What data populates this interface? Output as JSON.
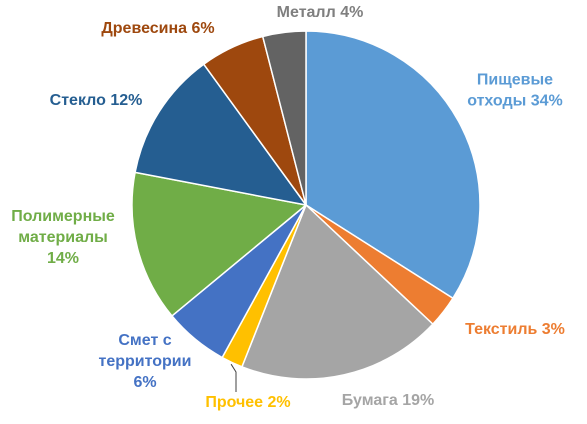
{
  "chart_data": {
    "type": "pie",
    "title": "",
    "series": [
      {
        "name": "Пищевые отходы",
        "value": 34,
        "color": "#5B9BD5",
        "label_lines": [
          "Пищевые",
          "отходы 34%"
        ]
      },
      {
        "name": "Текстиль",
        "value": 3,
        "color": "#ED7D31",
        "label_lines": [
          "Текстиль 3%"
        ]
      },
      {
        "name": "Бумага",
        "value": 19,
        "color": "#A5A5A5",
        "label_lines": [
          "Бумага 19%"
        ]
      },
      {
        "name": "Прочее",
        "value": 2,
        "color": "#FFC000",
        "label_lines": [
          "Прочее 2%"
        ]
      },
      {
        "name": "Смет с территории",
        "value": 6,
        "color": "#4472C4",
        "label_lines": [
          "Смет с",
          "территории",
          "6%"
        ]
      },
      {
        "name": "Полимерные материалы",
        "value": 14,
        "color": "#70AD47",
        "label_lines": [
          "Полимерные",
          "материалы",
          "14%"
        ]
      },
      {
        "name": "Стекло",
        "value": 12,
        "color": "#255E91",
        "label_lines": [
          "Стекло 12%"
        ]
      },
      {
        "name": "Древесина",
        "value": 6,
        "color": "#9E480E",
        "label_lines": [
          "Древесина 6%"
        ]
      },
      {
        "name": "Металл",
        "value": 4,
        "color": "#636363",
        "label_lines": [
          "Металл 4%"
        ]
      }
    ],
    "start_angle": "12 o'clock",
    "direction": "clockwise",
    "legend": "none",
    "data_labels": "category name and percent, colored to match slice"
  }
}
